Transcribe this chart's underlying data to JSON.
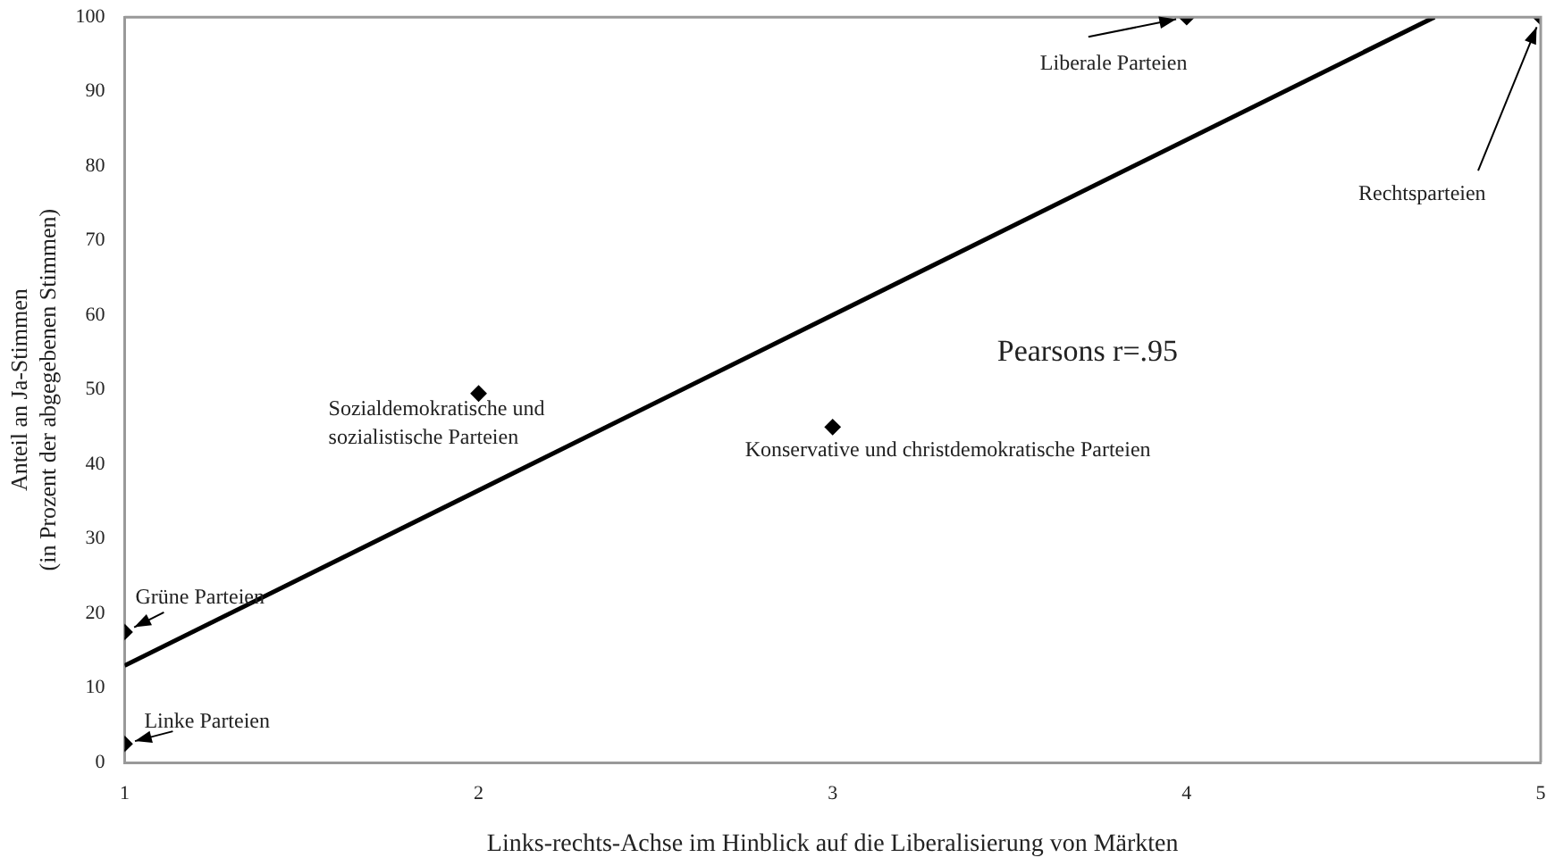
{
  "chart_data": {
    "type": "scatter",
    "xlabel": "Links-rechts-Achse im Hinblick auf die Liberalisierung von Märkten",
    "ylabel": "Anteil an Ja-Stimmen\n(in Prozent der abgegebenen Stimmen)",
    "series": [
      {
        "color": "#000000",
        "x": [
          1,
          1,
          2,
          3,
          4,
          5
        ],
        "values": [
          2.5,
          17.5,
          49.5,
          45,
          100,
          100
        ],
        "marker": "diamond"
      },
      {
        "type": "line",
        "color": "#000000",
        "x": [
          1,
          4.7
        ],
        "values": [
          13,
          100
        ],
        "marker": "none",
        "line_style": "solid"
      }
    ],
    "xlim": [
      1,
      5
    ],
    "xticks": [
      1,
      2,
      3,
      4,
      5
    ],
    "ylim": [
      0,
      100
    ],
    "yticks": [
      0,
      10,
      20,
      30,
      40,
      50,
      60,
      70,
      80,
      90,
      100
    ],
    "grid": false,
    "legend": false,
    "annotations": [
      {
        "text": "Linke Parteien",
        "x": 1,
        "y": 2.5
      },
      {
        "text": "Grüne Parteien",
        "x": 1,
        "y": 17.5
      },
      {
        "text": "Sozialdemokratische und\nsozialistische Parteien",
        "x": 2,
        "y": 49.5
      },
      {
        "text": "Konservative und christdemokratische Parteien",
        "x": 3,
        "y": 45
      },
      {
        "text": "Liberale Parteien",
        "x": 4,
        "y": 100
      },
      {
        "text": "Rechtsparteien",
        "x": 5,
        "y": 100
      },
      "Pearsons r=.95"
    ]
  }
}
